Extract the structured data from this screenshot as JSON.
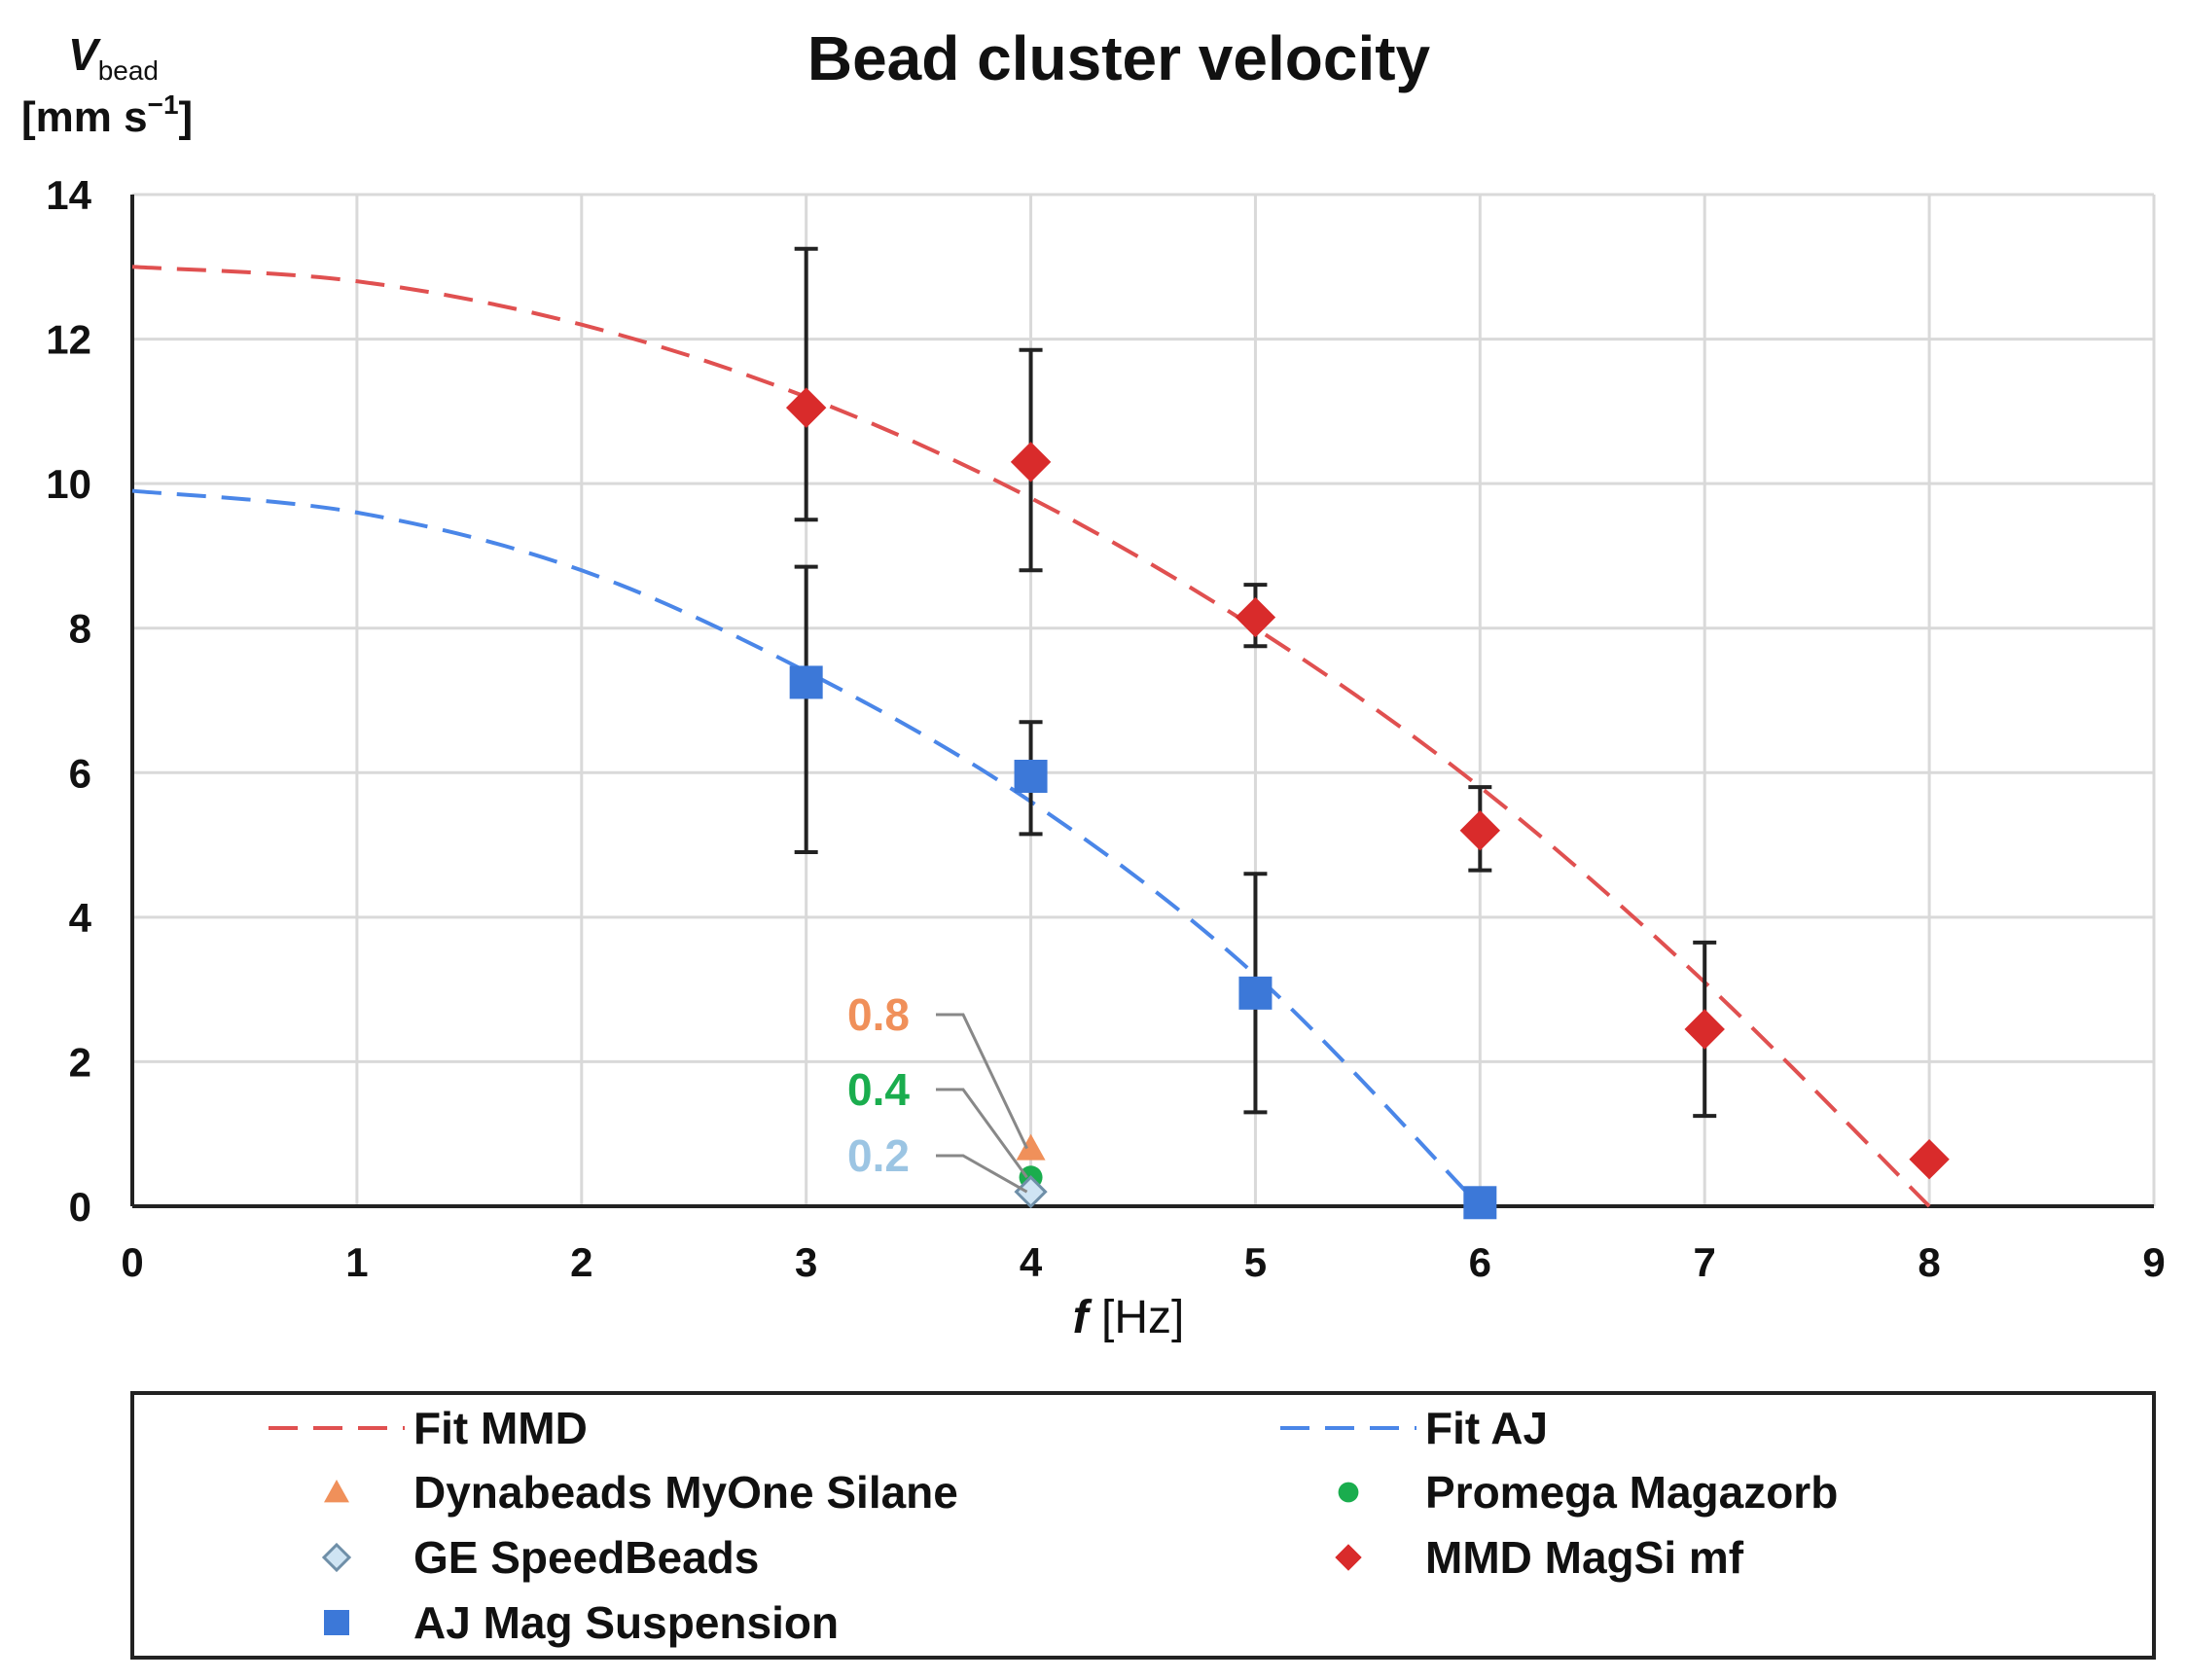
{
  "chart_data": {
    "type": "scatter",
    "title": "Bead cluster velocity",
    "ylabel": {
      "symbol": "V",
      "subscript": "bead",
      "unit": "[mm s",
      "unit_exp": "−1",
      "unit_close": "]"
    },
    "xlabel": {
      "symbol": "f",
      "unit": " [Hz]"
    },
    "xlim": [
      0,
      9
    ],
    "ylim": [
      0,
      14
    ],
    "xticks": [
      "0",
      "1",
      "2",
      "3",
      "4",
      "5",
      "6",
      "7",
      "8",
      "9"
    ],
    "yticks": [
      "0",
      "2",
      "4",
      "6",
      "8",
      "10",
      "12",
      "14"
    ],
    "grid": true,
    "legend_position": "bottom",
    "series": [
      {
        "name": "Fit MMD",
        "kind": "fit",
        "color": "#e05050",
        "dash": true,
        "x": [
          0,
          1,
          2,
          3,
          4,
          5,
          6,
          7,
          8
        ],
        "y": [
          13.0,
          12.8,
          12.2,
          11.2,
          9.8,
          8.0,
          5.8,
          3.1,
          0.0
        ]
      },
      {
        "name": "Fit AJ",
        "kind": "fit",
        "color": "#4a86e8",
        "dash": true,
        "x": [
          0,
          1,
          2,
          3,
          4,
          5,
          6
        ],
        "y": [
          9.9,
          9.6,
          8.8,
          7.4,
          5.6,
          3.2,
          0.0
        ]
      },
      {
        "name": "Dynabeads MyOne Silane",
        "kind": "points",
        "marker": "triangle",
        "color": "#f0905a",
        "x": [
          4
        ],
        "y": [
          0.8
        ]
      },
      {
        "name": "Promega Magazorb",
        "kind": "points",
        "marker": "circle",
        "color": "#1aad4e",
        "x": [
          4
        ],
        "y": [
          0.4
        ]
      },
      {
        "name": "GE SpeedBeads",
        "kind": "points",
        "marker": "diamond-open",
        "color": "#9cc5e3",
        "x": [
          4
        ],
        "y": [
          0.2
        ]
      },
      {
        "name": "MMD MagSi mf",
        "kind": "points",
        "marker": "diamond",
        "color": "#d92b2b",
        "x": [
          3,
          4,
          5,
          6,
          7,
          8
        ],
        "y": [
          11.05,
          10.3,
          8.15,
          5.2,
          2.45,
          0.65
        ],
        "err_low": [
          9.5,
          8.8,
          7.75,
          4.65,
          1.25,
          null
        ],
        "err_high": [
          13.25,
          11.85,
          8.6,
          5.8,
          3.65,
          null
        ]
      },
      {
        "name": "AJ Mag Suspension",
        "kind": "points",
        "marker": "square",
        "color": "#3c78d8",
        "x": [
          3,
          4,
          5,
          6
        ],
        "y": [
          7.25,
          5.95,
          2.95,
          0.05
        ],
        "err_low": [
          4.9,
          5.15,
          1.3,
          null
        ],
        "err_high": [
          8.85,
          6.7,
          4.6,
          null
        ]
      }
    ],
    "annotations": [
      {
        "text": "0.8",
        "color": "#f0905a",
        "x": 4,
        "y": 0.8
      },
      {
        "text": "0.4",
        "color": "#1aad4e",
        "x": 4,
        "y": 0.4
      },
      {
        "text": "0.2",
        "color": "#9cc5e3",
        "x": 4,
        "y": 0.2
      }
    ],
    "legend_layout": [
      [
        "Fit MMD",
        "Fit AJ"
      ],
      [
        "Dynabeads MyOne Silane",
        "Promega Magazorb"
      ],
      [
        "GE SpeedBeads",
        "MMD MagSi mf"
      ],
      [
        "AJ Mag Suspension",
        null
      ]
    ]
  }
}
